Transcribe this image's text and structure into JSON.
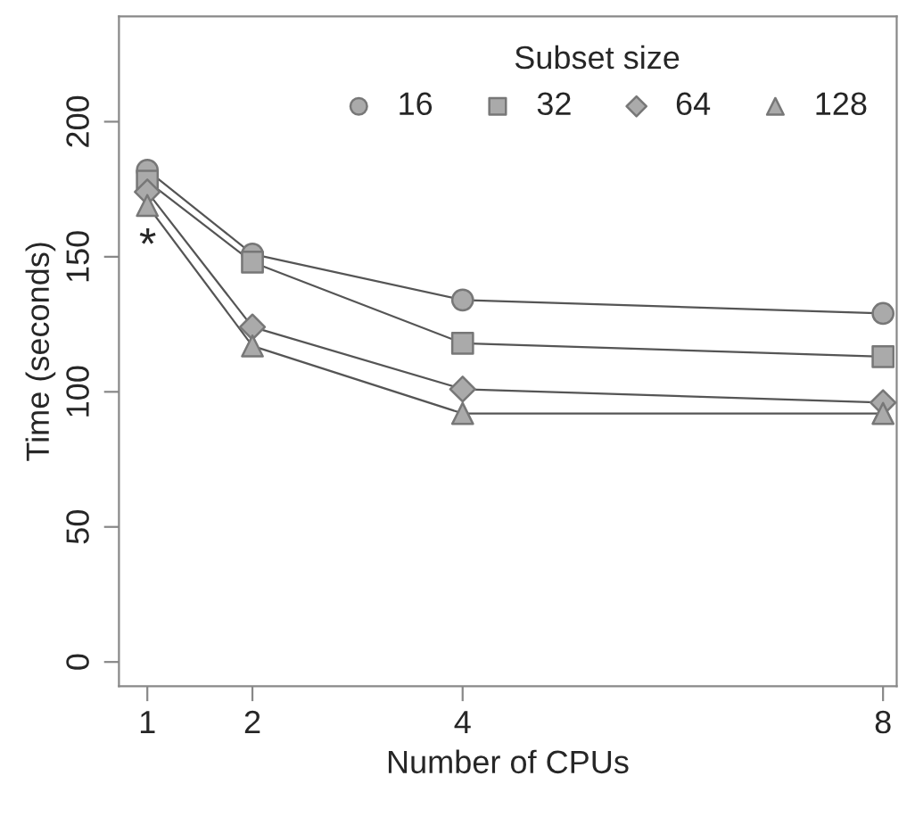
{
  "chart_data": {
    "type": "line",
    "xlabel": "Number of CPUs",
    "ylabel": "Time (seconds)",
    "legend_title": "Subset size",
    "legend": "top right",
    "grid": false,
    "x": [
      1,
      2,
      4,
      8
    ],
    "xlim": [
      0.73,
      8.13
    ],
    "xticks": [
      1,
      2,
      4,
      8
    ],
    "ylim": [
      -9,
      239
    ],
    "yticks": [
      0,
      50,
      100,
      150,
      200
    ],
    "series": [
      {
        "name": "16",
        "color": "#aaaaaa",
        "marker": "circle",
        "values": [
          182,
          151,
          134,
          129
        ]
      },
      {
        "name": "32",
        "color": "#aaaaaa",
        "marker": "square",
        "values": [
          178,
          148,
          118,
          113
        ]
      },
      {
        "name": "64",
        "color": "#aaaaaa",
        "marker": "diamond",
        "values": [
          174,
          124,
          101,
          96
        ]
      },
      {
        "name": "128",
        "color": "#aaaaaa",
        "marker": "triangle",
        "values": [
          169,
          117,
          92,
          92
        ]
      }
    ],
    "line_style": "solid",
    "annotations": [
      "*"
    ]
  }
}
